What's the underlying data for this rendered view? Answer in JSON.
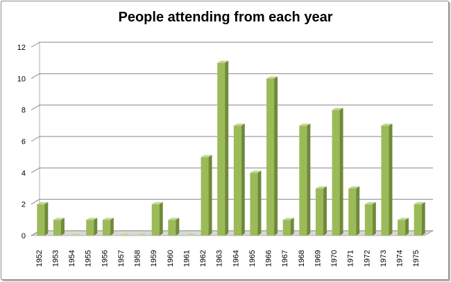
{
  "chart_data": {
    "type": "bar",
    "title": "People attending from each year",
    "xlabel": "",
    "ylabel": "",
    "categories": [
      "1952",
      "1953",
      "1954",
      "1955",
      "1956",
      "1957",
      "1958",
      "1959",
      "1960",
      "1961",
      "1962",
      "1963",
      "1964",
      "1965",
      "1966",
      "1967",
      "1968",
      "1969",
      "1970",
      "1971",
      "1972",
      "1973",
      "1974",
      "1975"
    ],
    "values": [
      2,
      1,
      0,
      1,
      1,
      0,
      0,
      2,
      1,
      0,
      5,
      11,
      7,
      4,
      10,
      1,
      7,
      3,
      8,
      3,
      2,
      7,
      1,
      2
    ],
    "ylim": [
      0,
      12
    ],
    "yticks": [
      "0",
      "2",
      "4",
      "6",
      "8",
      "10",
      "12"
    ],
    "grid": true,
    "legend": "none",
    "style": "3d-column",
    "colors": {
      "bar_front": "#9bbb59",
      "bar_side": "#6f8a38",
      "bar_top": "#c3d69b",
      "grid": "#868686",
      "floor": "#d9d9d9"
    }
  }
}
